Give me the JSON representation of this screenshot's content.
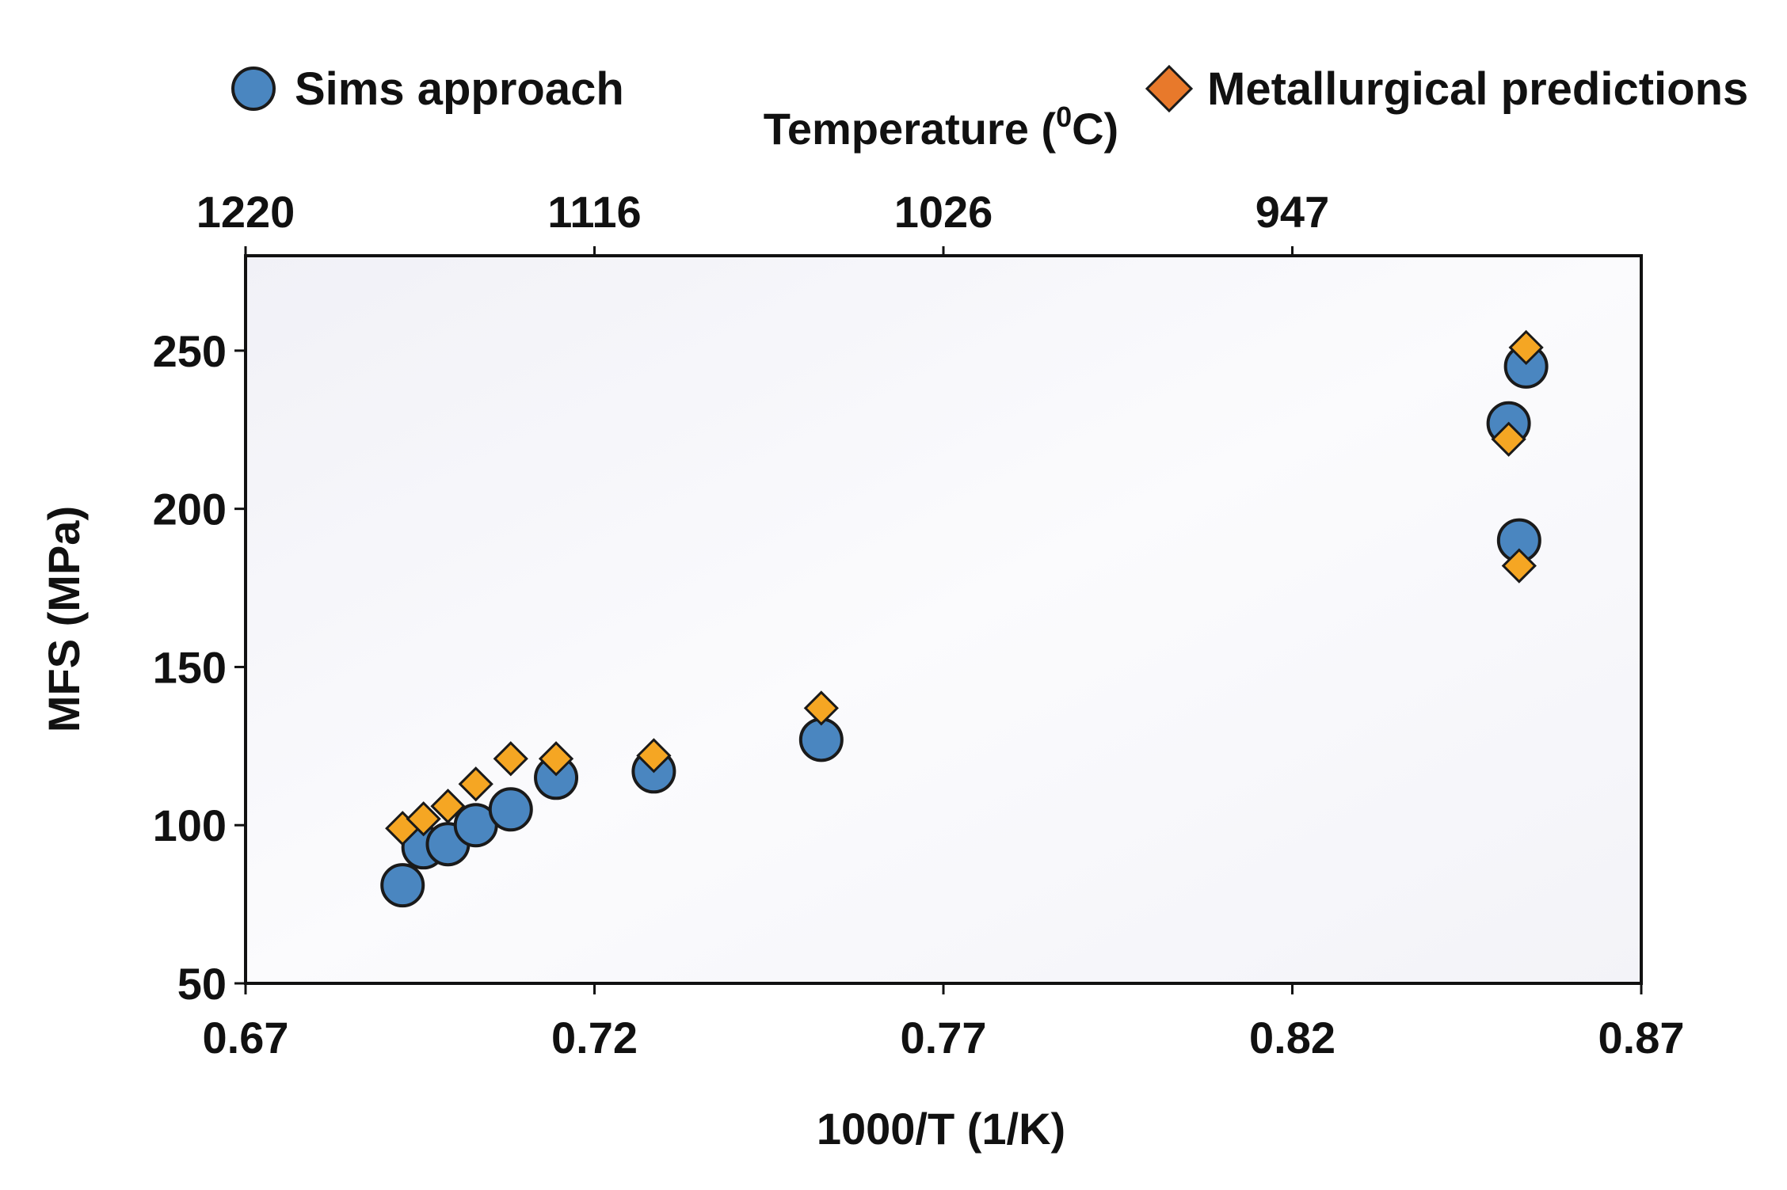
{
  "chart_data": {
    "type": "scatter",
    "title": "",
    "xlabel": "1000/T (1/K)",
    "ylabel": "MFS (MPa)",
    "top_axis_label": "Temperature (⁰C)",
    "top_axis_label_main": "Temperature (",
    "top_axis_label_sup": "0",
    "top_axis_label_end": "C)",
    "xlim": [
      0.67,
      0.87
    ],
    "ylim": [
      50,
      280
    ],
    "x_ticks": [
      0.67,
      0.72,
      0.77,
      0.82,
      0.87
    ],
    "x_tick_labels": [
      "0.67",
      "0.72",
      "0.77",
      "0.82",
      "0.87"
    ],
    "y_ticks": [
      50,
      100,
      150,
      200,
      250
    ],
    "y_tick_labels": [
      "50",
      "100",
      "150",
      "200",
      "250"
    ],
    "top_ticks": [
      0.67,
      0.72,
      0.77,
      0.82
    ],
    "top_tick_labels": [
      "1220",
      "1116",
      "1026",
      "947"
    ],
    "legend_position": "top",
    "series": [
      {
        "name": "Sims approach",
        "marker": "circle",
        "color": "#4a86c0",
        "points": [
          {
            "x": 0.6925,
            "y": 81
          },
          {
            "x": 0.6955,
            "y": 93
          },
          {
            "x": 0.699,
            "y": 94
          },
          {
            "x": 0.703,
            "y": 100
          },
          {
            "x": 0.708,
            "y": 105
          },
          {
            "x": 0.7145,
            "y": 115
          },
          {
            "x": 0.7285,
            "y": 117
          },
          {
            "x": 0.7525,
            "y": 127
          },
          {
            "x": 0.851,
            "y": 227
          },
          {
            "x": 0.8525,
            "y": 190
          },
          {
            "x": 0.8535,
            "y": 245
          }
        ]
      },
      {
        "name": "Metallurgical predictions",
        "marker": "diamond",
        "color": "#f5a623",
        "legend_color": "#e8792b",
        "points": [
          {
            "x": 0.6925,
            "y": 99
          },
          {
            "x": 0.6955,
            "y": 102
          },
          {
            "x": 0.699,
            "y": 106
          },
          {
            "x": 0.703,
            "y": 113
          },
          {
            "x": 0.708,
            "y": 121
          },
          {
            "x": 0.7145,
            "y": 121
          },
          {
            "x": 0.7285,
            "y": 122
          },
          {
            "x": 0.7525,
            "y": 137
          },
          {
            "x": 0.851,
            "y": 222
          },
          {
            "x": 0.8525,
            "y": 182
          },
          {
            "x": 0.8535,
            "y": 251
          }
        ]
      }
    ]
  }
}
